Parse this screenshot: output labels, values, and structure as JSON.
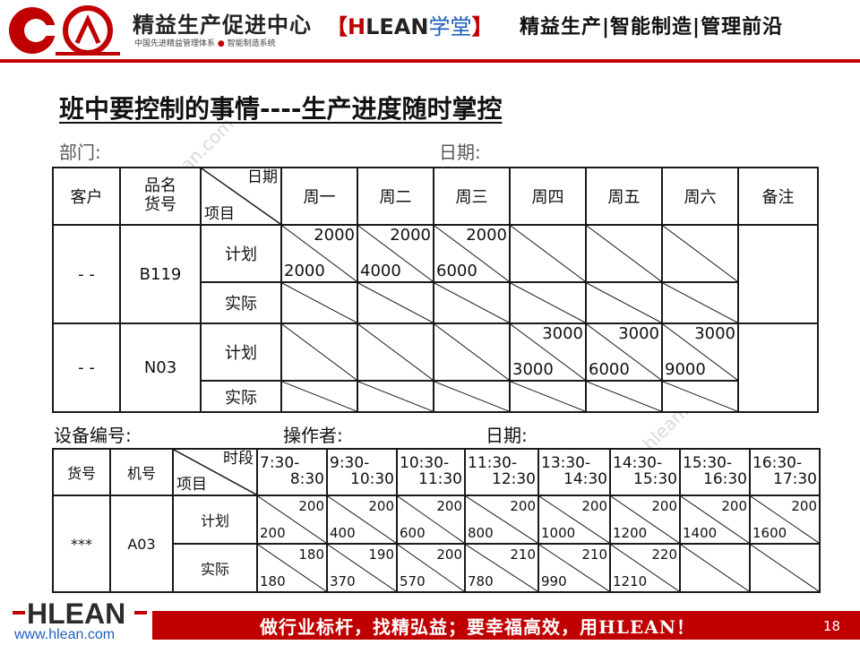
{
  "header": {
    "org_name": "精益生产促进中心",
    "org_sub_a": "中国先进精益管理体系",
    "org_sub_dot": "●",
    "org_sub_b": "智能制造系统",
    "academy_open": "【",
    "academy_h": "H",
    "academy_rest": "LEAN",
    "academy_xue": "学堂",
    "academy_close": "】",
    "tagline": "精益生产|智能制造|管理前沿"
  },
  "watermark": "hlean.com",
  "title": "班中要控制的事情----生产进度随时掌控",
  "form1": {
    "dept_label": "部门:",
    "date_label": "日期:",
    "columns": {
      "customer": "客户",
      "product_line1": "品名",
      "product_line2": "货号",
      "diag_top": "日期",
      "diag_bottom": "项目",
      "days": [
        "周一",
        "周二",
        "周三",
        "周四",
        "周五",
        "周六"
      ],
      "remark": "备注"
    },
    "rows": [
      {
        "customer": "- -",
        "product": "B119",
        "plan_label": "计划",
        "actual_label": "实际",
        "plan": [
          {
            "top": "2000",
            "bottom": "2000"
          },
          {
            "top": "2000",
            "bottom": "4000"
          },
          {
            "top": "2000",
            "bottom": "6000"
          },
          {
            "top": "",
            "bottom": ""
          },
          {
            "top": "",
            "bottom": ""
          },
          {
            "top": "",
            "bottom": ""
          }
        ]
      },
      {
        "customer": "- -",
        "product": "N03",
        "plan_label": "计划",
        "actual_label": "实际",
        "plan": [
          {
            "top": "",
            "bottom": ""
          },
          {
            "top": "",
            "bottom": ""
          },
          {
            "top": "",
            "bottom": ""
          },
          {
            "top": "3000",
            "bottom": "3000"
          },
          {
            "top": "3000",
            "bottom": "6000"
          },
          {
            "top": "3000",
            "bottom": "9000"
          }
        ]
      }
    ]
  },
  "form2": {
    "equipment_label": "设备编号:",
    "operator_label": "操作者:",
    "date_label": "日期:",
    "columns": {
      "item_no": "货号",
      "machine_no": "机号",
      "diag_top": "时段",
      "diag_bottom": "项目",
      "slots": [
        {
          "a": "7:30-",
          "b": "8:30"
        },
        {
          "a": "9:30-",
          "b": "10:30"
        },
        {
          "a": "10:30-",
          "b": "11:30"
        },
        {
          "a": "11:30-",
          "b": "12:30"
        },
        {
          "a": "13:30-",
          "b": "14:30"
        },
        {
          "a": "14:30-",
          "b": "15:30"
        },
        {
          "a": "15:30-",
          "b": "16:30"
        },
        {
          "a": "16:30-",
          "b": "17:30"
        }
      ]
    },
    "row": {
      "item_no": "***",
      "machine_no": "A03",
      "plan_label": "计划",
      "actual_label": "实际",
      "plan": [
        {
          "top": "200",
          "bottom": "200"
        },
        {
          "top": "200",
          "bottom": "400"
        },
        {
          "top": "200",
          "bottom": "600"
        },
        {
          "top": "200",
          "bottom": "800"
        },
        {
          "top": "200",
          "bottom": "1000"
        },
        {
          "top": "200",
          "bottom": "1200"
        },
        {
          "top": "200",
          "bottom": "1400"
        },
        {
          "top": "200",
          "bottom": "1600"
        }
      ],
      "actual": [
        {
          "top": "180",
          "bottom": "180"
        },
        {
          "top": "190",
          "bottom": "370"
        },
        {
          "top": "200",
          "bottom": "570"
        },
        {
          "top": "210",
          "bottom": "780"
        },
        {
          "top": "210",
          "bottom": "990"
        },
        {
          "top": "220",
          "bottom": "1210"
        },
        {
          "top": "",
          "bottom": ""
        },
        {
          "top": "",
          "bottom": ""
        }
      ]
    }
  },
  "footer": {
    "logo_text": "HLEAN",
    "url": "www.hlean.com",
    "slogan": "做行业标杆，找精弘益；要幸福高效，用HLEAN！",
    "page_number": "18"
  },
  "colors": {
    "brand_red": "#c00000",
    "link_blue": "#1f5fbf",
    "label_gray": "#595959"
  }
}
